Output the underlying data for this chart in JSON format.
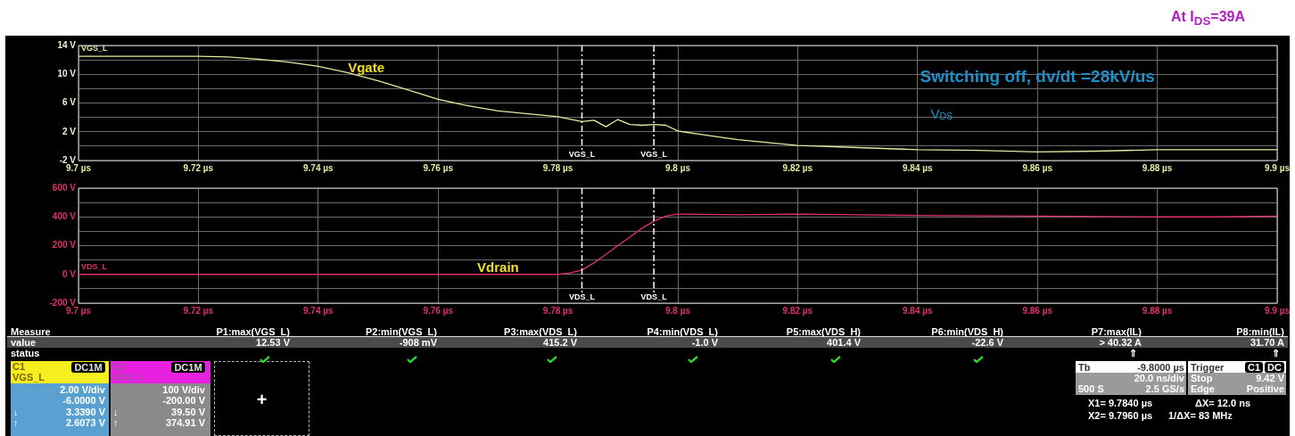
{
  "chart_data": [
    {
      "type": "line",
      "title": "At I$_{DS}$=39A",
      "xlim": [
        9.7,
        9.9
      ],
      "xticks": [
        {
          "value": 9.7,
          "label": "9.7 µs"
        },
        {
          "value": 9.72,
          "label": "9.72 µs"
        },
        {
          "value": 9.74,
          "label": "9.74 µs"
        },
        {
          "value": 9.76,
          "label": "9.76 µs"
        },
        {
          "value": 9.78,
          "label": "9.78 µs"
        },
        {
          "value": 9.8,
          "label": "9.8 µs"
        },
        {
          "value": 9.82,
          "label": "9.82 µs"
        },
        {
          "value": 9.84,
          "label": "9.84 µs"
        },
        {
          "value": 9.86,
          "label": "9.86 µs"
        },
        {
          "value": 9.88,
          "label": "9.88 µs"
        },
        {
          "value": 9.9,
          "label": "9.9 µs"
        }
      ],
      "ylim": [
        -2,
        14
      ],
      "yticks": [
        {
          "value": -2,
          "label": "-2 V"
        },
        {
          "value": 0,
          "label": null
        },
        {
          "value": 2,
          "label": "2 V"
        },
        {
          "value": 4,
          "label": null
        },
        {
          "value": 6,
          "label": "6 V"
        },
        {
          "value": 8,
          "label": null
        },
        {
          "value": 10,
          "label": "10 V"
        },
        {
          "value": 12,
          "label": null
        },
        {
          "value": 14,
          "label": "14 V"
        }
      ],
      "grid": true,
      "series": [
        {
          "name": "VGS_L",
          "color": "#e8e8a0",
          "x": [
            9.7,
            9.71,
            9.72,
            9.725,
            9.73,
            9.735,
            9.74,
            9.745,
            9.75,
            9.755,
            9.76,
            9.765,
            9.77,
            9.775,
            9.78,
            9.784,
            9.786,
            9.788,
            9.79,
            9.792,
            9.794,
            9.796,
            9.798,
            9.8,
            9.805,
            9.81,
            9.815,
            9.82,
            9.83,
            9.84,
            9.85,
            9.86,
            9.87,
            9.88,
            9.89,
            9.9
          ],
          "values": [
            12.5,
            12.5,
            12.5,
            12.4,
            12.1,
            11.7,
            11.1,
            10.2,
            9.1,
            7.8,
            6.5,
            5.6,
            4.9,
            4.5,
            4.1,
            3.4,
            3.6,
            2.7,
            3.7,
            3.0,
            2.9,
            3.0,
            2.9,
            2.1,
            1.5,
            0.9,
            0.5,
            0.1,
            -0.2,
            -0.5,
            -0.6,
            -0.8,
            -0.7,
            -0.5,
            -0.5,
            -0.5
          ]
        }
      ],
      "ref_lines": [
        {
          "axis": "x",
          "value": 9.784,
          "label": "VGS_L",
          "color": "#ffffff",
          "line_style": "dashed"
        },
        {
          "axis": "x",
          "value": 9.796,
          "label": "VGS_L",
          "color": "#ffffff",
          "line_style": "dashed"
        }
      ],
      "annotations": [
        "Vgate",
        "Switching off, dv/dt =28kV/us",
        "V$_{DS}$"
      ]
    },
    {
      "type": "line",
      "xlim": [
        9.7,
        9.9
      ],
      "xticks": [
        {
          "value": 9.7,
          "label": "9.7 µs"
        },
        {
          "value": 9.72,
          "label": "9.72 µs"
        },
        {
          "value": 9.74,
          "label": "9.74 µs"
        },
        {
          "value": 9.76,
          "label": "9.76 µs"
        },
        {
          "value": 9.78,
          "label": "9.78 µs"
        },
        {
          "value": 9.8,
          "label": "9.8 µs"
        },
        {
          "value": 9.82,
          "label": "9.82 µs"
        },
        {
          "value": 9.84,
          "label": "9.84 µs"
        },
        {
          "value": 9.86,
          "label": "9.86 µs"
        },
        {
          "value": 9.88,
          "label": "9.88 µs"
        },
        {
          "value": 9.9,
          "label": "9.9 µs"
        }
      ],
      "ylim": [
        -200,
        600
      ],
      "yticks": [
        {
          "value": -200,
          "label": "-200 V"
        },
        {
          "value": -100,
          "label": null
        },
        {
          "value": 0,
          "label": "0 V"
        },
        {
          "value": 100,
          "label": null
        },
        {
          "value": 200,
          "label": "200 V"
        },
        {
          "value": 300,
          "label": null
        },
        {
          "value": 400,
          "label": "400 V"
        },
        {
          "value": 500,
          "label": null
        },
        {
          "value": 600,
          "label": "600 V"
        }
      ],
      "grid": true,
      "series": [
        {
          "name": "VDS_L",
          "color": "#e0306a",
          "x": [
            9.7,
            9.72,
            9.74,
            9.76,
            9.78,
            9.782,
            9.784,
            9.786,
            9.788,
            9.79,
            9.792,
            9.794,
            9.796,
            9.798,
            9.8,
            9.81,
            9.82,
            9.83,
            9.84,
            9.86,
            9.88,
            9.89,
            9.9
          ],
          "values": [
            0,
            0,
            0,
            0,
            0,
            10,
            30,
            80,
            140,
            200,
            260,
            320,
            370,
            405,
            420,
            415,
            420,
            415,
            410,
            405,
            400,
            400,
            405
          ]
        }
      ],
      "ref_lines": [
        {
          "axis": "x",
          "value": 9.784,
          "label": "VDS_L",
          "color": "#ffffff",
          "line_style": "dashed"
        },
        {
          "axis": "x",
          "value": 9.796,
          "label": "VDS_L",
          "color": "#ffffff",
          "line_style": "dashed"
        }
      ],
      "annotations": [
        "Vdrain"
      ]
    },
    {
      "type": "other",
      "annotations": [
        "Measure",
        "P1:max(VGS_L)",
        "P2:min(VGS_L)",
        "P3:max(VDS_L)",
        "P4:min(VDS_L)",
        "P5:max(VDS_H)",
        "P6:min(VDS_H)",
        "P7:max(IL)",
        "P8:min(IL)",
        "value",
        "12.53 V",
        "-908 mV",
        "415.2 V",
        "-1.0 V",
        "401.4 V",
        "-22.6 V",
        "> 40.32 A",
        "31.70 A",
        "status",
        "⇑",
        "⇑",
        "C1",
        "DC1M",
        "VGS_L",
        "2.00 V/div",
        "-6.0000 V",
        "↓",
        "3.3390 V",
        "↑",
        "2.6073 V",
        "C2",
        "DC1M",
        "VDS_L",
        "100 V/div",
        "-200.00 V",
        "↓",
        "39.50 V",
        "↑",
        "374.91 V",
        "+",
        "Tb",
        "-9.8000 µs",
        "20.0 ns/div",
        "500 S",
        "2.5 GS/s",
        "Trigger",
        "C1",
        "DC",
        "Stop",
        "9.42 V",
        "Edge",
        "Positive",
        "X1= 9.7840 µs",
        "ΔX= 12.0 ns",
        "X2= 9.7960 µs",
        "1/ΔX= 83 MHz"
      ]
    }
  ]
}
